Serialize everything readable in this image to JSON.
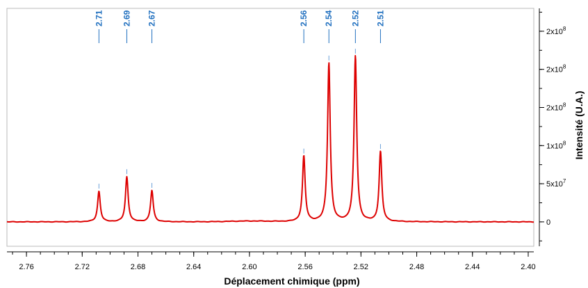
{
  "chart_data": {
    "type": "line",
    "xlabel": "Déplacement chimique (ppm)",
    "ylabel": "Intensité (U.A.)",
    "xlim": [
      2.774,
      2.396
    ],
    "ylim": [
      -32000000,
      280000000
    ],
    "x_reversed": true,
    "x_ticks": [
      "2.76",
      "2.72",
      "2.68",
      "2.64",
      "2.60",
      "2.56",
      "2.52",
      "2.48",
      "2.44",
      "2.40"
    ],
    "y_ticks": [
      {
        "value": 0,
        "label": "0"
      },
      {
        "value": 50000000,
        "label": "5x10",
        "exp": "7"
      },
      {
        "value": 100000000,
        "label": "1x10",
        "exp": "8"
      },
      {
        "value": 150000000,
        "label": "2x10",
        "exp": "8"
      },
      {
        "value": 200000000,
        "label": "2x10",
        "exp": "8"
      },
      {
        "value": 250000000,
        "label": "2x10",
        "exp": "8"
      }
    ],
    "peak_labels": [
      "2.71",
      "2.69",
      "2.67",
      "2.56",
      "2.54",
      "2.52",
      "2.51"
    ],
    "peaks": [
      {
        "x": 2.708,
        "y": 40000000
      },
      {
        "x": 2.688,
        "y": 59000000
      },
      {
        "x": 2.67,
        "y": 41000000
      },
      {
        "x": 2.561,
        "y": 86000000
      },
      {
        "x": 2.543,
        "y": 208000000
      },
      {
        "x": 2.524,
        "y": 217000000
      },
      {
        "x": 2.506,
        "y": 92000000
      }
    ],
    "series": [
      {
        "color": "#dd0000"
      }
    ],
    "label_color": "#1f6fbf",
    "grid": false
  }
}
